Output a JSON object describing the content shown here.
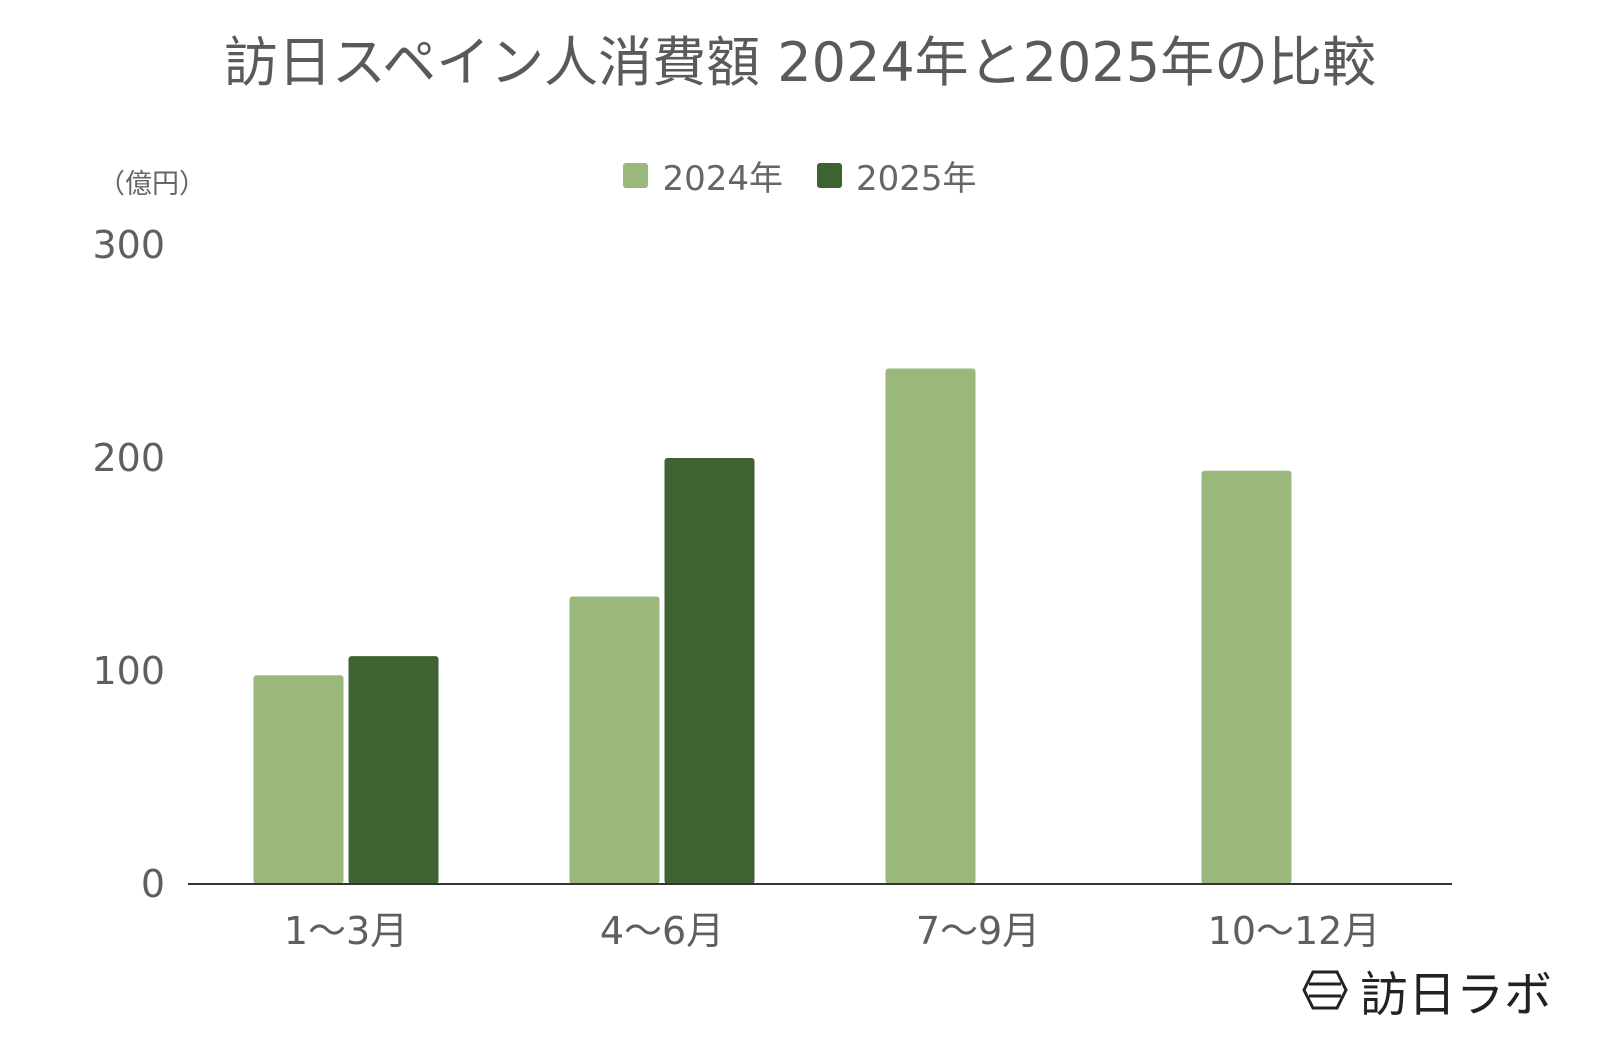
{
  "chart_data": {
    "type": "bar",
    "title": "訪日スペイン人消費額 2024年と2025年の比較",
    "unit_label": "（億円）",
    "categories": [
      "1～3月",
      "4～6月",
      "7～9月",
      "10～12月"
    ],
    "series": [
      {
        "name": "2024年",
        "values": [
          98,
          135,
          242,
          194
        ],
        "color": "#9ab87c"
      },
      {
        "name": "2025年",
        "values": [
          107,
          200,
          null,
          null
        ],
        "color": "#3e6331"
      }
    ],
    "ylim": [
      0,
      300
    ],
    "yticks": [
      0,
      100,
      200,
      300
    ],
    "grid": false,
    "legend_position": "top-center"
  },
  "logo": {
    "text": "訪日ラボ",
    "icon": "hexagon-logo-icon"
  }
}
